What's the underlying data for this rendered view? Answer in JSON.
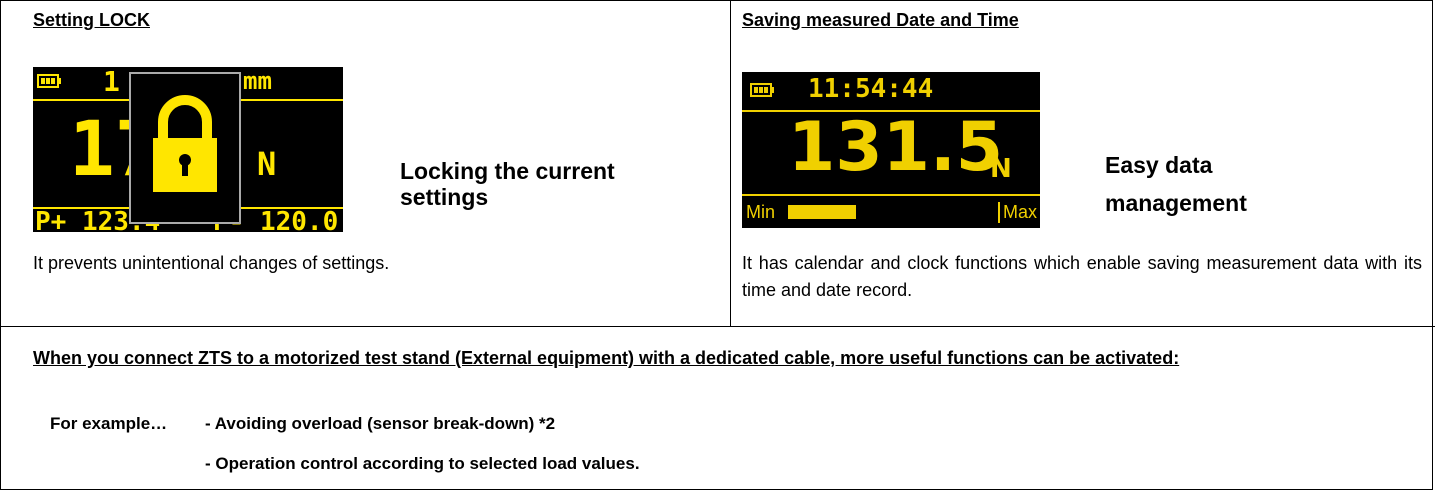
{
  "left": {
    "title": "Setting LOCK",
    "screen": {
      "top": "1",
      "unit_top": "mm",
      "value": "17",
      "unit": "N",
      "peak_plus": "P+ 123.4",
      "peak_minus": "P- 120.0"
    },
    "headline": [
      "Locking the current",
      "settings"
    ],
    "description": "It prevents unintentional changes of settings."
  },
  "right": {
    "title": "Saving measured Date and Time",
    "screen": {
      "time": "11:54:44",
      "value": "131.5",
      "unit": "N",
      "min": "Min",
      "max": "Max"
    },
    "headline": [
      "Easy data",
      "management"
    ],
    "description": "It has calendar and clock functions which enable saving measurement data with its time and date record."
  },
  "bottom": {
    "heading": "When you connect ZTS to a motorized test stand (External equipment) with a dedicated cable, more useful functions can be activated:",
    "lead": "For example…",
    "items": [
      "- Avoiding overload (sensor break-down) *2",
      "- Operation control according to selected load values."
    ]
  }
}
